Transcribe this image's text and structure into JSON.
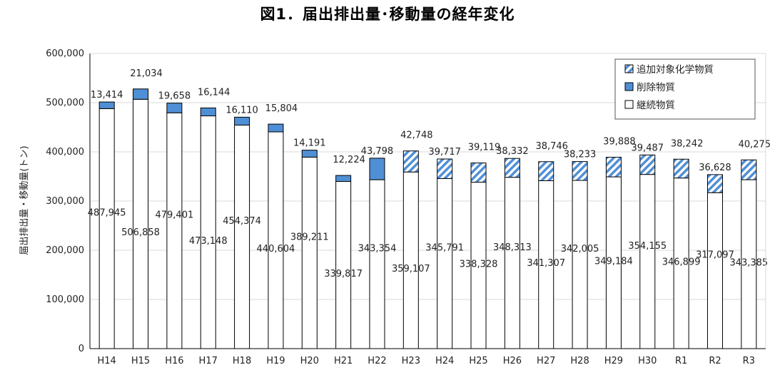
{
  "chart_data": {
    "type": "bar",
    "stacked": true,
    "title": "図1．届出排出量･移動量の経年変化",
    "ylabel": "届出排出量・移動量(トン)",
    "xlabel": "",
    "ylim": [
      0,
      600000
    ],
    "yticks": [
      0,
      100000,
      200000,
      300000,
      400000,
      500000,
      600000
    ],
    "ytick_labels": [
      "0",
      "100,000",
      "200,000",
      "300,000",
      "400,000",
      "500,000",
      "600,000"
    ],
    "grid": true,
    "legend_position": "top-right",
    "categories": [
      "H14",
      "H15",
      "H16",
      "H17",
      "H18",
      "H19",
      "H20",
      "H21",
      "H22",
      "H23",
      "H24",
      "H25",
      "H26",
      "H27",
      "H28",
      "H29",
      "H30",
      "R1",
      "R2",
      "R3"
    ],
    "series": [
      {
        "name": "継続物質",
        "fill": "#ffffff",
        "values": [
          487945,
          506858,
          479401,
          473148,
          454374,
          440604,
          389211,
          339817,
          343354,
          359107,
          345791,
          338328,
          348313,
          341307,
          342005,
          349184,
          354155,
          346899,
          317097,
          343385
        ],
        "labels": [
          "487,945",
          "506,858",
          "479,401",
          "473,148",
          "454,374",
          "440,604",
          "389,211",
          "339,817",
          "343,354",
          "359,107",
          "345,791",
          "338,328",
          "348,313",
          "341,307",
          "342,005",
          "349,184",
          "354,155",
          "346,899",
          "317,097",
          "343,385"
        ]
      },
      {
        "name": "削除物質",
        "fill": "#4f8fd6",
        "values": [
          13414,
          21034,
          19658,
          16144,
          16110,
          15804,
          14191,
          12224,
          43798,
          null,
          null,
          null,
          null,
          null,
          null,
          null,
          null,
          null,
          null,
          null
        ],
        "labels": [
          "13,414",
          "21,034",
          "19,658",
          "16,144",
          "16,110",
          "15,804",
          "14,191",
          "12,224",
          "43,798",
          "",
          "",
          "",
          "",
          "",
          "",
          "",
          "",
          "",
          "",
          ""
        ]
      },
      {
        "name": "追加対象化学物質",
        "fill": "hatch-#4f8fd6",
        "values": [
          null,
          null,
          null,
          null,
          null,
          null,
          null,
          null,
          null,
          42748,
          39717,
          39119,
          38332,
          38746,
          38233,
          39888,
          39487,
          38242,
          36628,
          40275
        ],
        "labels": [
          "",
          "",
          "",
          "",
          "",
          "",
          "",
          "",
          "",
          "42,748",
          "39,717",
          "39,119",
          "38,332",
          "38,746",
          "38,233",
          "39,888",
          "39,487",
          "38,242",
          "36,628",
          "40,275"
        ]
      }
    ],
    "legend": [
      "追加対象化学物質",
      "削除物質",
      "継続物質"
    ]
  }
}
